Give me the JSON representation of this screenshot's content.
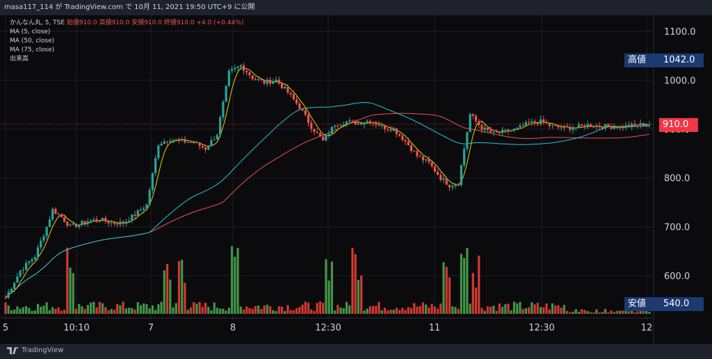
{
  "topbar": {
    "text": "masa117_114 が TradingView.com で 10月 11, 2021 19:50 UTC+9 に公開"
  },
  "legend": {
    "symbol": "かんなん丸, 5, TSE",
    "ohlc": "始値910.0 高値910.0 安値910.0 終値910.0 +4.0 (+0.44%)",
    "ma5": "MA (5, close)",
    "ma50": "MA (50, close)",
    "ma75": "MA (75, close)",
    "volume": "出来高"
  },
  "tags": {
    "high_label": "高値",
    "high_value": "1042.0",
    "current_value": "910.0",
    "low_label": "安値",
    "low_value": "540.0"
  },
  "brand": {
    "text": "TradingView",
    "icon": "tradingview-logo-icon"
  },
  "colors": {
    "background": "#0b0b0e",
    "up": "#26a69a",
    "down": "#ef5350",
    "ma5": "#f5d300",
    "ma50": "#26c6da",
    "ma75": "#ef5350",
    "volume_up": "#4caf50",
    "volume_down": "#f44336",
    "tag_bg": "#1c3a70",
    "current_tag_bg": "#f23645"
  },
  "chart_data": {
    "type": "candlestick",
    "title": "かんなん丸, 5, TSE",
    "interval": "5",
    "ylim": [
      540,
      1120
    ],
    "y_ticks": [
      600.0,
      700.0,
      800.0,
      900.0,
      1000.0,
      1100.0
    ],
    "x_tick_labels": [
      "5",
      "10:10",
      "7",
      "8",
      "12:30",
      "11",
      "12:30",
      "12"
    ],
    "grid": true,
    "legend_position": "top-left",
    "series": [
      {
        "name": "MA (5, close)"
      },
      {
        "name": "MA (50, close)"
      },
      {
        "name": "MA (75, close)"
      },
      {
        "name": "出来高"
      }
    ],
    "price_path_points": [
      [
        0,
        555
      ],
      [
        5,
        610
      ],
      [
        10,
        640
      ],
      [
        14,
        700
      ],
      [
        16,
        735
      ],
      [
        19,
        720
      ],
      [
        22,
        700
      ],
      [
        25,
        705
      ],
      [
        28,
        712
      ],
      [
        32,
        715
      ],
      [
        36,
        708
      ],
      [
        40,
        708
      ],
      [
        44,
        725
      ],
      [
        48,
        745
      ],
      [
        52,
        870
      ],
      [
        56,
        880
      ],
      [
        60,
        875
      ],
      [
        64,
        872
      ],
      [
        68,
        860
      ],
      [
        72,
        890
      ],
      [
        76,
        1015
      ],
      [
        80,
        1030
      ],
      [
        84,
        1005
      ],
      [
        88,
        995
      ],
      [
        92,
        1000
      ],
      [
        96,
        975
      ],
      [
        100,
        945
      ],
      [
        104,
        905
      ],
      [
        108,
        875
      ],
      [
        112,
        910
      ],
      [
        116,
        915
      ],
      [
        120,
        912
      ],
      [
        124,
        918
      ],
      [
        128,
        905
      ],
      [
        132,
        900
      ],
      [
        136,
        875
      ],
      [
        140,
        845
      ],
      [
        144,
        830
      ],
      [
        148,
        800
      ],
      [
        151,
        785
      ],
      [
        154,
        790
      ],
      [
        158,
        930
      ],
      [
        162,
        902
      ],
      [
        166,
        890
      ],
      [
        170,
        895
      ],
      [
        174,
        900
      ],
      [
        178,
        912
      ],
      [
        182,
        915
      ],
      [
        186,
        905
      ],
      [
        190,
        902
      ],
      [
        194,
        903
      ],
      [
        198,
        908
      ],
      [
        202,
        906
      ],
      [
        206,
        905
      ],
      [
        210,
        905
      ],
      [
        214,
        908
      ],
      [
        218,
        910
      ]
    ],
    "high": 1042.0,
    "low": 540.0,
    "last": 910.0,
    "change": 4.0,
    "change_percent": 0.44
  }
}
